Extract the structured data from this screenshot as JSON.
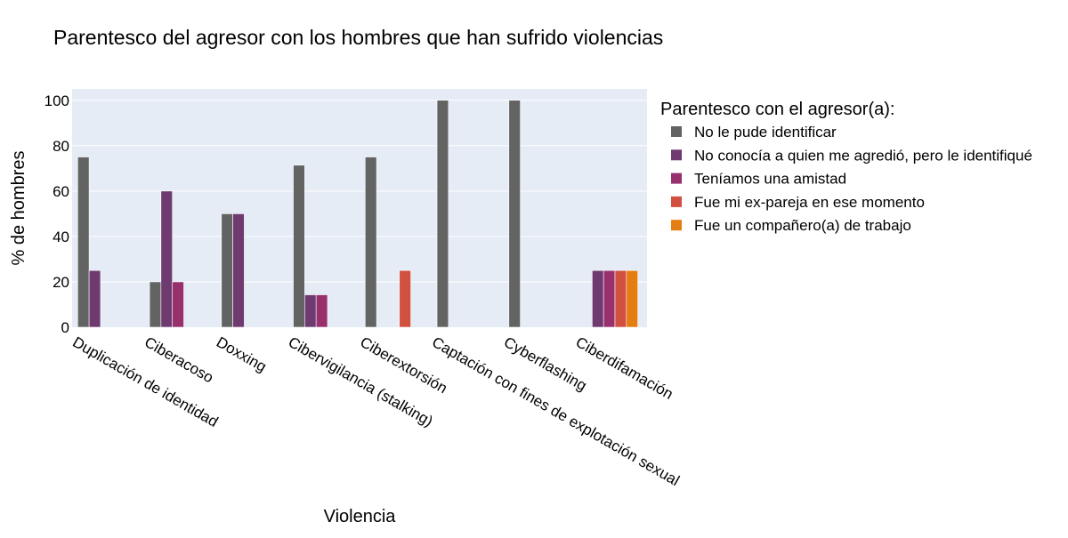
{
  "chart_data": {
    "type": "bar",
    "title": "Parentesco del agresor con los hombres que han sufrido violencias",
    "xlabel": "Violencia",
    "ylabel": "% de hombres",
    "ylim": [
      0,
      105
    ],
    "yticks": [
      0,
      20,
      40,
      60,
      80,
      100
    ],
    "grid": true,
    "legend_title": "Parentesco con el agresor(a):",
    "legend_position": "right",
    "categories": [
      "Duplicación de identidad",
      "Ciberacoso",
      "Doxxing",
      "Cibervigilancia (stalking)",
      "Ciberextorsión",
      "Captación con fines de explotación sexual",
      "Cyberflashing",
      "Ciberdifamación"
    ],
    "series": [
      {
        "name": "No le pude identificar",
        "color": "#636363",
        "values": [
          75,
          20,
          50,
          71.4,
          75,
          100,
          100,
          null
        ]
      },
      {
        "name": "No conocía a quien me agredió, pero le identifiqué",
        "color": "#6e3a70",
        "values": [
          25,
          60,
          50,
          14.3,
          null,
          null,
          null,
          25
        ]
      },
      {
        "name": "Teníamos una amistad",
        "color": "#98306e",
        "values": [
          null,
          20,
          null,
          14.3,
          null,
          null,
          null,
          25
        ]
      },
      {
        "name": "Fue mi ex-pareja en ese momento",
        "color": "#d1503f",
        "values": [
          null,
          null,
          null,
          null,
          25,
          null,
          null,
          25
        ]
      },
      {
        "name": "Fue un compañero(a) de trabajo",
        "color": "#e57e12",
        "values": [
          null,
          null,
          null,
          null,
          null,
          null,
          null,
          25
        ]
      }
    ]
  }
}
